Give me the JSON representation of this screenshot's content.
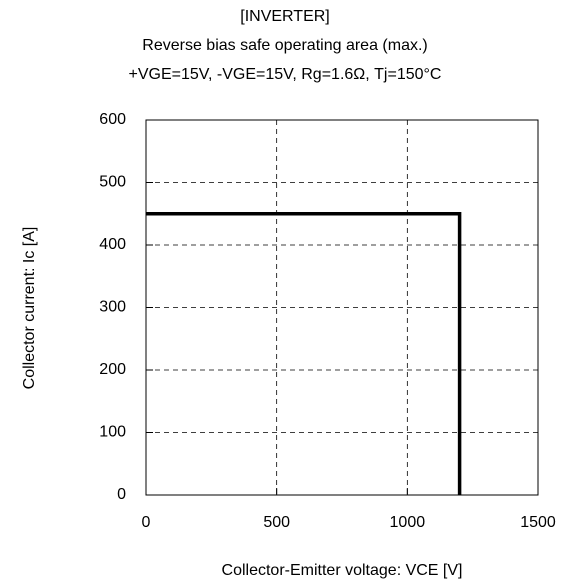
{
  "chart_data": {
    "type": "line",
    "title": "[INVERTER]",
    "subtitle": "Reverse bias safe operating area (max.)",
    "conditions": "+VGE=15V, -VGE=15V, Rg=1.6Ω, Tj=150°C",
    "xlabel": "Collector-Emitter voltage: VCE [V]",
    "ylabel": "Collector current: Ic [A]",
    "x": [
      0,
      1200,
      1200
    ],
    "series": [
      {
        "color": "#000000",
        "values": [
          450,
          450,
          0
        ]
      }
    ],
    "xlim": [
      0,
      1500
    ],
    "xticks": [
      0,
      500,
      1000,
      1500
    ],
    "ylim": [
      0,
      600
    ],
    "yticks": [
      0,
      100,
      200,
      300,
      400,
      500,
      600
    ],
    "grid": true
  }
}
